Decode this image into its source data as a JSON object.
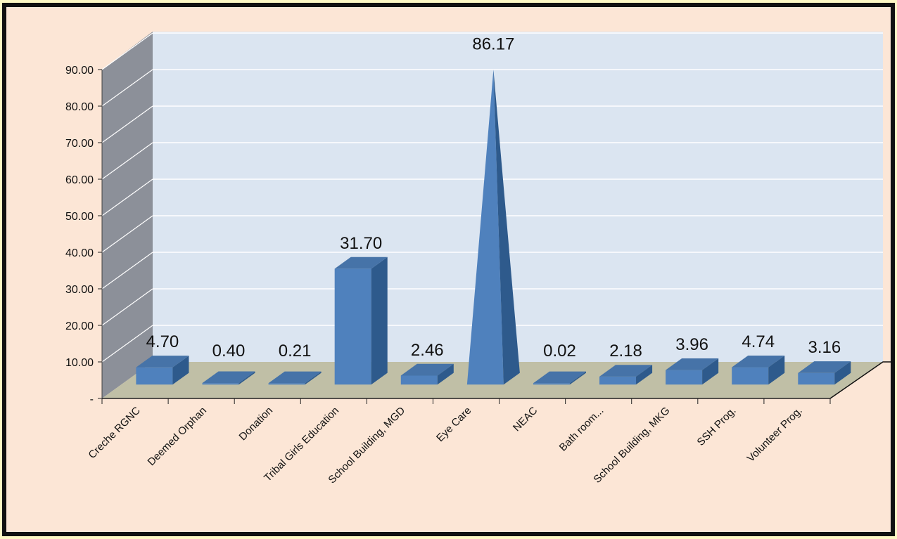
{
  "colors": {
    "outer_background": "#fdf8c4",
    "chart_background": "#fce6d6",
    "plot_area": "#dbe5f1",
    "side_wall": "#8c9099",
    "floor": "#c0bfa6",
    "bar_front": "#4f81bd",
    "bar_side": "#2e5a8c",
    "bar_top": "#4673a8",
    "border": "#111111"
  },
  "chart_data": {
    "type": "bar",
    "style": "3d-column",
    "categories": [
      "Creche RGNC",
      "Deemed Orphan",
      "Donation",
      "Tribal Girls Education",
      "School Building, MGD",
      "Eye Care",
      "NEAC",
      "Bath room...",
      "School Building, MKG",
      "SSH Prog.",
      "Volunteer Prog."
    ],
    "values": [
      4.7,
      0.4,
      0.21,
      31.7,
      2.46,
      86.17,
      0.02,
      2.18,
      3.96,
      4.74,
      3.16
    ],
    "value_labels": [
      "4.70",
      "0.40",
      "0.21",
      "31.70",
      "2.46",
      "86.17",
      "0.02",
      "2.18",
      "3.96",
      "4.74",
      "3.16"
    ],
    "y_ticks": [
      0,
      10,
      20,
      30,
      40,
      50,
      60,
      70,
      80,
      90
    ],
    "y_tick_labels": [
      "-",
      "10.00",
      "20.00",
      "30.00",
      "40.00",
      "50.00",
      "60.00",
      "70.00",
      "80.00",
      "90.00"
    ],
    "ylim": [
      0,
      90
    ],
    "grid": true,
    "legend": "none",
    "title": "",
    "xlabel": "",
    "ylabel": ""
  }
}
